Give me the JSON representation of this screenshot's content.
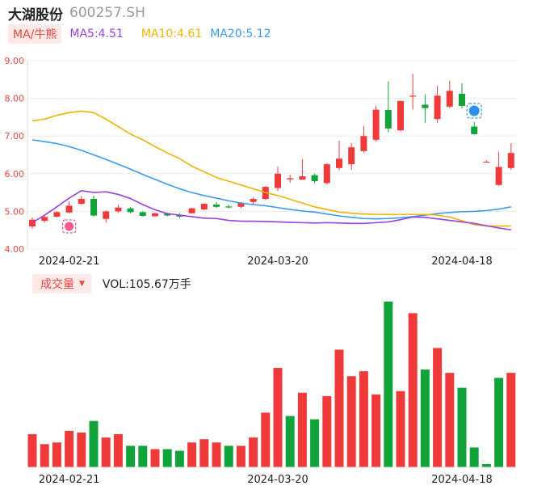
{
  "header": {
    "name": "大湖股份",
    "code": "600257.SH"
  },
  "ma_bar": {
    "button": "MA/牛熊",
    "ma5": {
      "label": "MA5:4.51",
      "color": "#9b3fe0"
    },
    "ma10": {
      "label": "MA10:4.61",
      "color": "#f0b400"
    },
    "ma20": {
      "label": "MA20:5.12",
      "color": "#3a9bf0"
    }
  },
  "vol_bar": {
    "button": "成交量",
    "caret": "▼",
    "label": "VOL:105.67万手"
  },
  "colors": {
    "up": "#f03a3a",
    "down": "#10a33a",
    "ma5": "#9b3fe0",
    "ma10": "#f0b400",
    "ma20": "#3a9bf0",
    "axis": "#e8463f"
  },
  "chart_data": [
    {
      "type": "candlestick",
      "y_ticks": [
        "9.00",
        "8.00",
        "7.00",
        "6.00",
        "5.00",
        "4.00"
      ],
      "ylim": [
        4.0,
        9.0
      ],
      "x_ticks": [
        {
          "index": 3,
          "label": "2024-02-21"
        },
        {
          "index": 20,
          "label": "2024-03-20"
        },
        {
          "index": 35,
          "label": "2024-04-18"
        }
      ],
      "markers": [
        {
          "index": 3,
          "type": "buy-marker"
        },
        {
          "index": 36,
          "type": "sell-marker"
        }
      ],
      "candles": [
        {
          "o": 4.6,
          "c": 4.78,
          "h": 4.84,
          "l": 4.54
        },
        {
          "o": 4.75,
          "c": 4.85,
          "h": 4.88,
          "l": 4.7
        },
        {
          "o": 4.86,
          "c": 4.98,
          "h": 5.0,
          "l": 4.84
        },
        {
          "o": 4.97,
          "c": 5.15,
          "h": 5.27,
          "l": 4.94
        },
        {
          "o": 5.2,
          "c": 5.33,
          "h": 5.41,
          "l": 5.18
        },
        {
          "o": 5.33,
          "c": 4.89,
          "h": 5.42,
          "l": 4.86
        },
        {
          "o": 4.8,
          "c": 5.0,
          "h": 5.02,
          "l": 4.7
        },
        {
          "o": 5.0,
          "c": 5.1,
          "h": 5.17,
          "l": 4.96
        },
        {
          "o": 5.08,
          "c": 4.98,
          "h": 5.11,
          "l": 4.94
        },
        {
          "o": 4.98,
          "c": 4.88,
          "h": 5.0,
          "l": 4.86
        },
        {
          "o": 4.87,
          "c": 4.95,
          "h": 4.97,
          "l": 4.85
        },
        {
          "o": 4.94,
          "c": 4.89,
          "h": 4.97,
          "l": 4.87
        },
        {
          "o": 4.91,
          "c": 4.86,
          "h": 4.96,
          "l": 4.82
        },
        {
          "o": 4.95,
          "c": 5.08,
          "h": 5.1,
          "l": 4.94
        },
        {
          "o": 5.05,
          "c": 5.2,
          "h": 5.22,
          "l": 5.03
        },
        {
          "o": 5.18,
          "c": 5.12,
          "h": 5.25,
          "l": 5.09
        },
        {
          "o": 5.13,
          "c": 5.11,
          "h": 5.18,
          "l": 5.08
        },
        {
          "o": 5.12,
          "c": 5.23,
          "h": 5.25,
          "l": 5.08
        },
        {
          "o": 5.25,
          "c": 5.33,
          "h": 5.37,
          "l": 5.18
        },
        {
          "o": 5.33,
          "c": 5.65,
          "h": 5.67,
          "l": 5.3
        },
        {
          "o": 5.62,
          "c": 6.0,
          "h": 6.18,
          "l": 5.54
        },
        {
          "o": 5.85,
          "c": 5.88,
          "h": 5.97,
          "l": 5.76
        },
        {
          "o": 5.84,
          "c": 5.93,
          "h": 6.38,
          "l": 5.84
        },
        {
          "o": 5.96,
          "c": 5.8,
          "h": 6.0,
          "l": 5.75
        },
        {
          "o": 5.75,
          "c": 6.25,
          "h": 6.28,
          "l": 5.71
        },
        {
          "o": 6.15,
          "c": 6.4,
          "h": 6.88,
          "l": 6.09
        },
        {
          "o": 6.25,
          "c": 6.7,
          "h": 6.81,
          "l": 6.1
        },
        {
          "o": 6.6,
          "c": 7.0,
          "h": 7.27,
          "l": 6.56
        },
        {
          "o": 6.9,
          "c": 7.7,
          "h": 7.8,
          "l": 6.85
        },
        {
          "o": 7.69,
          "c": 7.2,
          "h": 8.45,
          "l": 7.1
        },
        {
          "o": 7.15,
          "c": 7.93,
          "h": 7.94,
          "l": 7.12
        },
        {
          "o": 8.07,
          "c": 8.07,
          "h": 8.65,
          "l": 7.7
        },
        {
          "o": 7.83,
          "c": 7.74,
          "h": 8.11,
          "l": 7.35
        },
        {
          "o": 7.45,
          "c": 8.07,
          "h": 8.33,
          "l": 7.35
        },
        {
          "o": 7.78,
          "c": 8.2,
          "h": 8.47,
          "l": 7.74
        },
        {
          "o": 8.12,
          "c": 7.8,
          "h": 8.4,
          "l": 7.73
        },
        {
          "o": 7.25,
          "c": 7.05,
          "h": 7.38,
          "l": 7.03
        },
        {
          "o": 6.32,
          "c": 6.32,
          "h": 6.35,
          "l": 6.3
        },
        {
          "o": 5.7,
          "c": 6.18,
          "h": 6.58,
          "l": 5.68
        },
        {
          "o": 6.15,
          "c": 6.55,
          "h": 6.81,
          "l": 6.1
        }
      ],
      "ma": {
        "ma5": [
          4.7,
          4.9,
          5.12,
          5.35,
          5.55,
          5.5,
          5.52,
          5.45,
          5.34,
          5.18,
          5.04,
          4.94,
          4.9,
          4.86,
          4.82,
          4.81,
          4.76,
          4.74,
          4.74,
          4.73,
          4.72,
          4.71,
          4.7,
          4.69,
          4.7,
          4.69,
          4.68,
          4.68,
          4.7,
          4.72,
          4.78,
          4.85,
          4.84,
          4.8,
          4.76,
          4.72,
          4.68,
          4.62,
          4.56,
          4.51
        ],
        "ma10": [
          7.4,
          7.45,
          7.55,
          7.62,
          7.66,
          7.62,
          7.45,
          7.25,
          7.05,
          6.9,
          6.72,
          6.55,
          6.4,
          6.2,
          6.05,
          5.9,
          5.8,
          5.7,
          5.6,
          5.5,
          5.42,
          5.32,
          5.22,
          5.12,
          5.05,
          4.98,
          4.95,
          4.93,
          4.92,
          4.92,
          4.92,
          4.92,
          4.92,
          4.9,
          4.85,
          4.75,
          4.65,
          4.61,
          4.61,
          4.61
        ],
        "ma20": [
          6.9,
          6.85,
          6.8,
          6.72,
          6.62,
          6.5,
          6.38,
          6.25,
          6.12,
          5.98,
          5.85,
          5.72,
          5.6,
          5.5,
          5.42,
          5.35,
          5.28,
          5.22,
          5.18,
          5.15,
          5.1,
          5.05,
          5.01,
          4.98,
          4.93,
          4.88,
          4.84,
          4.81,
          4.8,
          4.81,
          4.83,
          4.86,
          4.9,
          4.94,
          4.97,
          4.99,
          5.0,
          5.02,
          5.06,
          5.12
        ]
      }
    },
    {
      "type": "bar",
      "title": "VOL",
      "x_ticks": [
        {
          "index": 3,
          "label": "2024-02-21"
        },
        {
          "index": 20,
          "label": "2024-03-20"
        },
        {
          "index": 35,
          "label": "2024-04-18"
        }
      ],
      "values": [
        20,
        14,
        15,
        22,
        21,
        28,
        18,
        20,
        13,
        13,
        11,
        11,
        10,
        15,
        17,
        15,
        13,
        13,
        18,
        33,
        60,
        31,
        45,
        29,
        43,
        71,
        55,
        58,
        44,
        100,
        46,
        93,
        59,
        72,
        57,
        48,
        12,
        2,
        54,
        57
      ],
      "directions": [
        "up",
        "up",
        "up",
        "up",
        "up",
        "down",
        "up",
        "up",
        "down",
        "down",
        "up",
        "down",
        "down",
        "up",
        "up",
        "up",
        "down",
        "up",
        "up",
        "up",
        "up",
        "down",
        "up",
        "down",
        "up",
        "up",
        "up",
        "up",
        "up",
        "down",
        "up",
        "up",
        "down",
        "up",
        "up",
        "down",
        "down",
        "down",
        "down",
        "up"
      ]
    }
  ]
}
